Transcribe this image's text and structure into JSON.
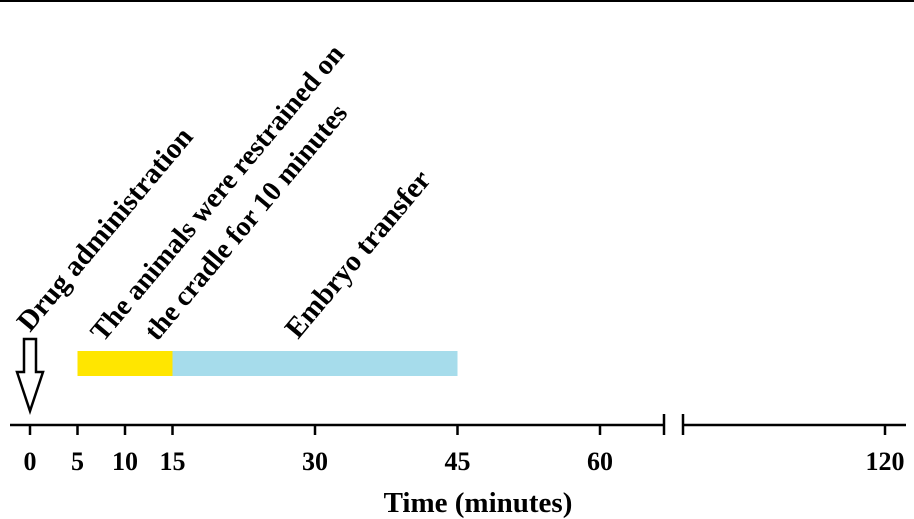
{
  "annotations": {
    "drug": "Drug administration",
    "restrain_line1": "The animals were restrained on",
    "restrain_line2": "the cradle for 10 minutes",
    "embryo": "Embryo transfer"
  },
  "axis": {
    "title": "Time (minutes)",
    "ticks": [
      {
        "label": "0",
        "value": 0
      },
      {
        "label": "5",
        "value": 5
      },
      {
        "label": "10",
        "value": 10
      },
      {
        "label": "15",
        "value": 15
      },
      {
        "label": "30",
        "value": 30
      },
      {
        "label": "45",
        "value": 45
      },
      {
        "label": "60",
        "value": 60
      },
      {
        "label": "120",
        "value": 120
      }
    ],
    "break_after": 65
  },
  "bars": [
    {
      "name": "restraint",
      "start": 5,
      "end": 15,
      "color": "#FFE600"
    },
    {
      "name": "embryo-transfer",
      "start": 15,
      "end": 45,
      "color": "#A6DCEB"
    }
  ],
  "colors": {
    "line": "#000000"
  }
}
